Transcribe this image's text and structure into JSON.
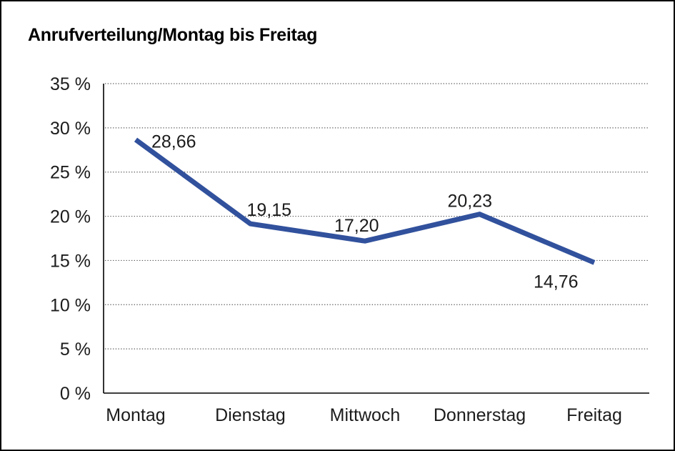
{
  "page": {
    "title": "Anrufverteilung/Montag bis Freitag"
  },
  "chart_data": {
    "type": "line",
    "title": "Anrufverteilung/Montag bis Freitag",
    "categories": [
      "Montag",
      "Dienstag",
      "Mittwoch",
      "Donnerstag",
      "Freitag"
    ],
    "series": [
      {
        "name": "Anrufverteilung",
        "values": [
          28.66,
          19.15,
          17.2,
          20.23,
          14.76
        ],
        "value_labels": [
          "28,66",
          "19,15",
          "17,20",
          "20,23",
          "14,76"
        ]
      }
    ],
    "xlabel": "",
    "ylabel": "",
    "ylim": [
      0,
      35
    ],
    "y_ticks": [
      0,
      5,
      10,
      15,
      20,
      25,
      30,
      35
    ],
    "y_tick_suffix": " %",
    "grid": "horizontal-dotted",
    "legend": "none",
    "colors": {
      "line": "#31519D",
      "axis": "#000000",
      "grid": "#555555",
      "text": "#1c1c1c",
      "background": "#ffffff"
    }
  }
}
